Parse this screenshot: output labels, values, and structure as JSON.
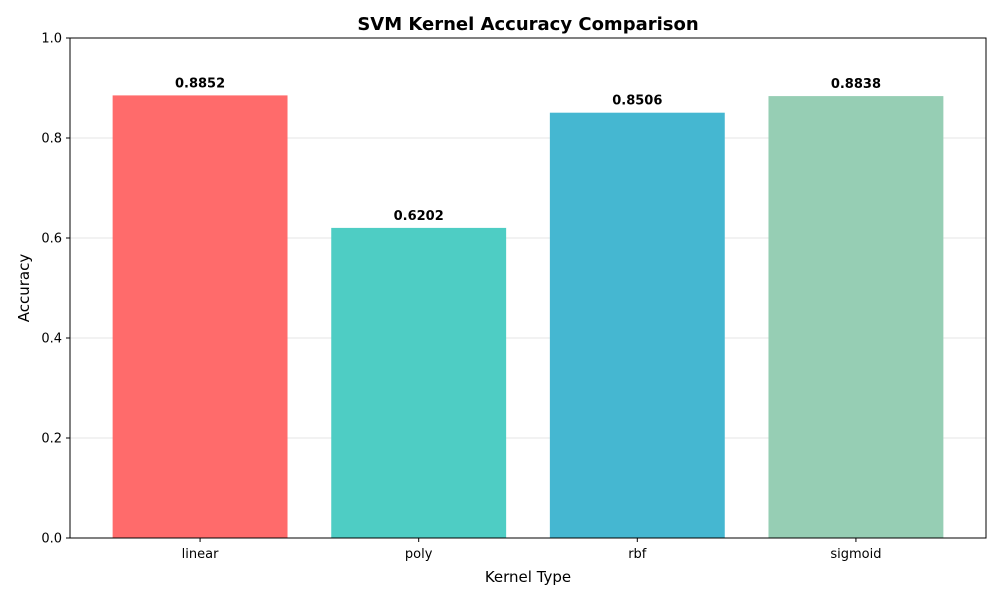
{
  "chart_data": {
    "type": "bar",
    "title": "SVM Kernel Accuracy Comparison",
    "xlabel": "Kernel Type",
    "ylabel": "Accuracy",
    "categories": [
      "linear",
      "poly",
      "rbf",
      "sigmoid"
    ],
    "values": [
      0.8852,
      0.6202,
      0.8506,
      0.8838
    ],
    "value_labels": [
      "0.8852",
      "0.6202",
      "0.8506",
      "0.8838"
    ],
    "colors": [
      "#ff6b6b",
      "#4ecdc4",
      "#45b7d1",
      "#96ceb4"
    ],
    "ylim": [
      0,
      1.0
    ],
    "yticks": [
      0.0,
      0.2,
      0.4,
      0.6,
      0.8,
      1.0
    ],
    "ytick_labels": [
      "0.0",
      "0.2",
      "0.4",
      "0.6",
      "0.8",
      "1.0"
    ],
    "grid": true,
    "grid_axis": "y",
    "legend": false
  }
}
